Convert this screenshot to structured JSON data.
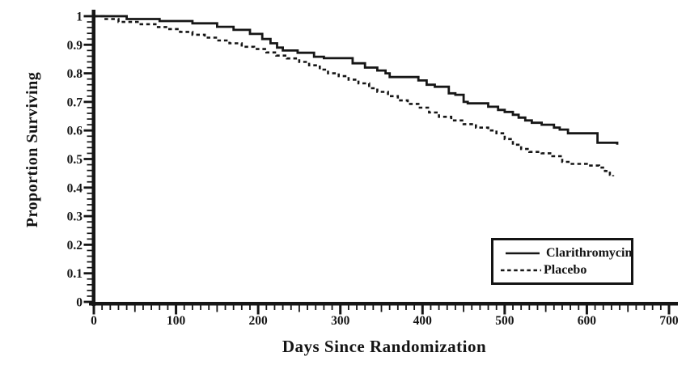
{
  "figure": {
    "background": "#ffffff",
    "ink_color": "#161616"
  },
  "chart_data": {
    "type": "line",
    "subtype": "kaplan-meier-step-survival",
    "title": "",
    "xlabel": "Days Since Randomization",
    "ylabel": "Proportion Surviving",
    "xlim": [
      0,
      700
    ],
    "ylim": [
      0,
      1
    ],
    "grid": "off",
    "axes": {
      "x_minor_step": 10,
      "x_mid_step": 50,
      "y_minor_step": 0.02,
      "x_ticks": [
        {
          "v": 0,
          "label": "0"
        },
        {
          "v": 100,
          "label": "100"
        },
        {
          "v": 200,
          "label": "200"
        },
        {
          "v": 300,
          "label": "300"
        },
        {
          "v": 400,
          "label": "400"
        },
        {
          "v": 500,
          "label": "500"
        },
        {
          "v": 600,
          "label": "600"
        },
        {
          "v": 700,
          "label": "700"
        }
      ],
      "y_ticks": [
        {
          "v": 1,
          "label": "1"
        },
        {
          "v": 0.9,
          "label": "0.9"
        },
        {
          "v": 0.8,
          "label": "0.8"
        },
        {
          "v": 0.7,
          "label": "0.7"
        },
        {
          "v": 0.6,
          "label": "0.6"
        },
        {
          "v": 0.5,
          "label": "0.5"
        },
        {
          "v": 0.4,
          "label": "0.4"
        },
        {
          "v": 0.3,
          "label": "0.3"
        },
        {
          "v": 0.2,
          "label": "0.2"
        },
        {
          "v": 0.1,
          "label": "0.1"
        },
        {
          "v": 0,
          "label": "0"
        }
      ]
    },
    "legend": {
      "position": "lower-right",
      "entries": [
        {
          "label": "Clarithromycin",
          "style": "solid"
        },
        {
          "label": "Placebo",
          "style": "dashed"
        }
      ]
    },
    "series": [
      {
        "name": "Clarithromycin",
        "style": "solid",
        "points": [
          [
            0,
            1.0
          ],
          [
            40,
            0.99
          ],
          [
            80,
            0.983
          ],
          [
            120,
            0.975
          ],
          [
            150,
            0.963
          ],
          [
            170,
            0.952
          ],
          [
            190,
            0.938
          ],
          [
            205,
            0.92
          ],
          [
            215,
            0.905
          ],
          [
            223,
            0.89
          ],
          [
            230,
            0.88
          ],
          [
            248,
            0.872
          ],
          [
            268,
            0.858
          ],
          [
            280,
            0.853
          ],
          [
            315,
            0.835
          ],
          [
            330,
            0.82
          ],
          [
            345,
            0.81
          ],
          [
            355,
            0.8
          ],
          [
            360,
            0.787
          ],
          [
            395,
            0.775
          ],
          [
            405,
            0.76
          ],
          [
            415,
            0.753
          ],
          [
            432,
            0.73
          ],
          [
            440,
            0.725
          ],
          [
            450,
            0.7
          ],
          [
            455,
            0.695
          ],
          [
            480,
            0.683
          ],
          [
            492,
            0.672
          ],
          [
            500,
            0.665
          ],
          [
            510,
            0.655
          ],
          [
            517,
            0.645
          ],
          [
            525,
            0.635
          ],
          [
            533,
            0.627
          ],
          [
            545,
            0.62
          ],
          [
            560,
            0.61
          ],
          [
            567,
            0.603
          ],
          [
            577,
            0.59
          ],
          [
            613,
            0.557
          ],
          [
            637,
            0.55
          ]
        ]
      },
      {
        "name": "Placebo",
        "style": "dashed",
        "points": [
          [
            0,
            1.0
          ],
          [
            12,
            0.99
          ],
          [
            30,
            0.98
          ],
          [
            55,
            0.972
          ],
          [
            75,
            0.962
          ],
          [
            90,
            0.955
          ],
          [
            105,
            0.945
          ],
          [
            120,
            0.935
          ],
          [
            135,
            0.925
          ],
          [
            150,
            0.915
          ],
          [
            165,
            0.905
          ],
          [
            180,
            0.893
          ],
          [
            195,
            0.885
          ],
          [
            210,
            0.873
          ],
          [
            222,
            0.862
          ],
          [
            235,
            0.852
          ],
          [
            250,
            0.84
          ],
          [
            262,
            0.828
          ],
          [
            275,
            0.813
          ],
          [
            285,
            0.8
          ],
          [
            298,
            0.79
          ],
          [
            310,
            0.778
          ],
          [
            322,
            0.765
          ],
          [
            335,
            0.748
          ],
          [
            345,
            0.735
          ],
          [
            358,
            0.72
          ],
          [
            370,
            0.705
          ],
          [
            382,
            0.693
          ],
          [
            395,
            0.68
          ],
          [
            408,
            0.663
          ],
          [
            420,
            0.648
          ],
          [
            435,
            0.635
          ],
          [
            450,
            0.622
          ],
          [
            465,
            0.61
          ],
          [
            480,
            0.6
          ],
          [
            490,
            0.59
          ],
          [
            500,
            0.57
          ],
          [
            510,
            0.55
          ],
          [
            520,
            0.535
          ],
          [
            530,
            0.525
          ],
          [
            545,
            0.52
          ],
          [
            558,
            0.51
          ],
          [
            570,
            0.49
          ],
          [
            580,
            0.483
          ],
          [
            600,
            0.477
          ],
          [
            615,
            0.47
          ],
          [
            622,
            0.458
          ],
          [
            628,
            0.445
          ],
          [
            632,
            0.44
          ]
        ]
      }
    ]
  }
}
